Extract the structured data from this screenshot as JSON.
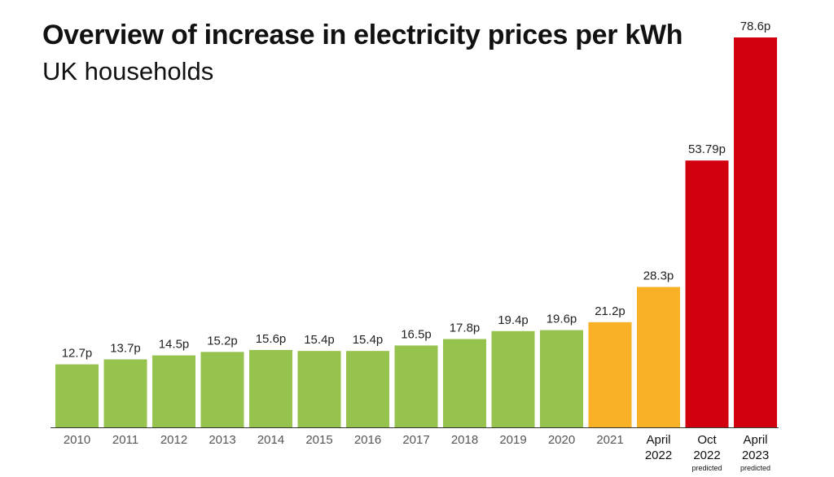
{
  "chart_data": {
    "type": "bar",
    "title": "Overview of increase in electricity prices per kWh",
    "subtitle": "UK households",
    "xlabel": "",
    "ylabel": "",
    "ylim": [
      0,
      80
    ],
    "grid": false,
    "legend": "none",
    "categories": [
      {
        "lines": [
          "2010"
        ],
        "note": ""
      },
      {
        "lines": [
          "2011"
        ],
        "note": ""
      },
      {
        "lines": [
          "2012"
        ],
        "note": ""
      },
      {
        "lines": [
          "2013"
        ],
        "note": ""
      },
      {
        "lines": [
          "2014"
        ],
        "note": ""
      },
      {
        "lines": [
          "2015"
        ],
        "note": ""
      },
      {
        "lines": [
          "2016"
        ],
        "note": ""
      },
      {
        "lines": [
          "2017"
        ],
        "note": ""
      },
      {
        "lines": [
          "2018"
        ],
        "note": ""
      },
      {
        "lines": [
          "2019"
        ],
        "note": ""
      },
      {
        "lines": [
          "2020"
        ],
        "note": ""
      },
      {
        "lines": [
          "2021"
        ],
        "note": ""
      },
      {
        "lines": [
          "April",
          "2022"
        ],
        "note": ""
      },
      {
        "lines": [
          "Oct",
          "2022"
        ],
        "note": "predicted"
      },
      {
        "lines": [
          "April",
          "2023"
        ],
        "note": "predicted"
      }
    ],
    "values": [
      12.7,
      13.7,
      14.5,
      15.2,
      15.6,
      15.4,
      15.4,
      16.5,
      17.8,
      19.4,
      19.6,
      21.2,
      28.3,
      53.79,
      78.6
    ],
    "value_labels": [
      "12.7p",
      "13.7p",
      "14.5p",
      "15.2p",
      "15.6p",
      "15.4p",
      "15.4p",
      "16.5p",
      "17.8p",
      "19.4p",
      "19.6p",
      "21.2p",
      "28.3p",
      "53.79p",
      "78.6p"
    ],
    "bar_colors": [
      "#96c24e",
      "#96c24e",
      "#96c24e",
      "#96c24e",
      "#96c24e",
      "#96c24e",
      "#96c24e",
      "#96c24e",
      "#96c24e",
      "#96c24e",
      "#96c24e",
      "#f9b227",
      "#f9b227",
      "#d2000f",
      "#d2000f"
    ],
    "axis_color": "#333333"
  }
}
